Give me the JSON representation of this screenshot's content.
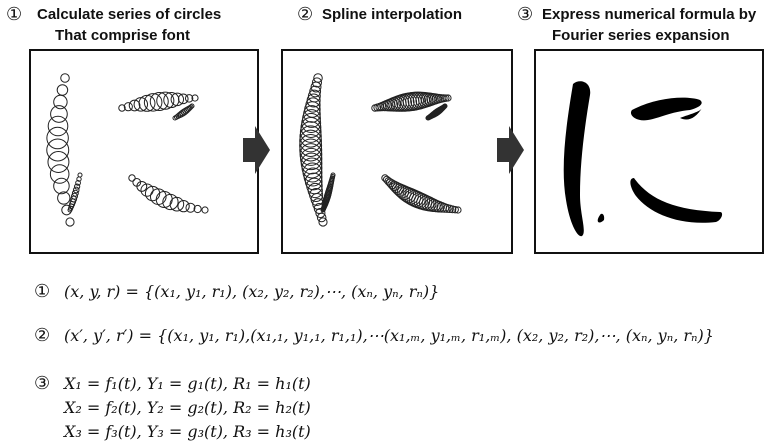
{
  "steps": [
    {
      "number": "①",
      "title": [
        "Calculate series of circles",
        "That comprise font"
      ]
    },
    {
      "number": "②",
      "title": [
        "Spline interpolation"
      ]
    },
    {
      "number": "③",
      "title": [
        "Express numerical formula by",
        "Fourier series expansion"
      ]
    }
  ],
  "formulas": [
    {
      "number": "①",
      "lines": [
        "(x, y, r) = {(x₁, y₁, r₁), (x₂, y₂, r₂),⋯, (xₙ, yₙ, rₙ)}"
      ]
    },
    {
      "number": "②",
      "lines": [
        "(x′, y′, r′) = {(x₁, y₁, r₁),(x₁,₁, y₁,₁, r₁,₁),⋯(x₁,ₘ, y₁,ₘ, r₁,ₘ), (x₂, y₂, r₂),⋯, (xₙ, yₙ, rₙ)}"
      ]
    },
    {
      "number": "③",
      "lines": [
        "X₁ = f₁(t), Y₁ = g₁(t), R₁ = h₁(t)",
        "X₂ = f₂(t), Y₂ = g₂(t), R₂ = h₂(t)",
        "X₃ = f₃(t), Y₃ = g₃(t), R₃ = h₃(t)"
      ]
    }
  ]
}
